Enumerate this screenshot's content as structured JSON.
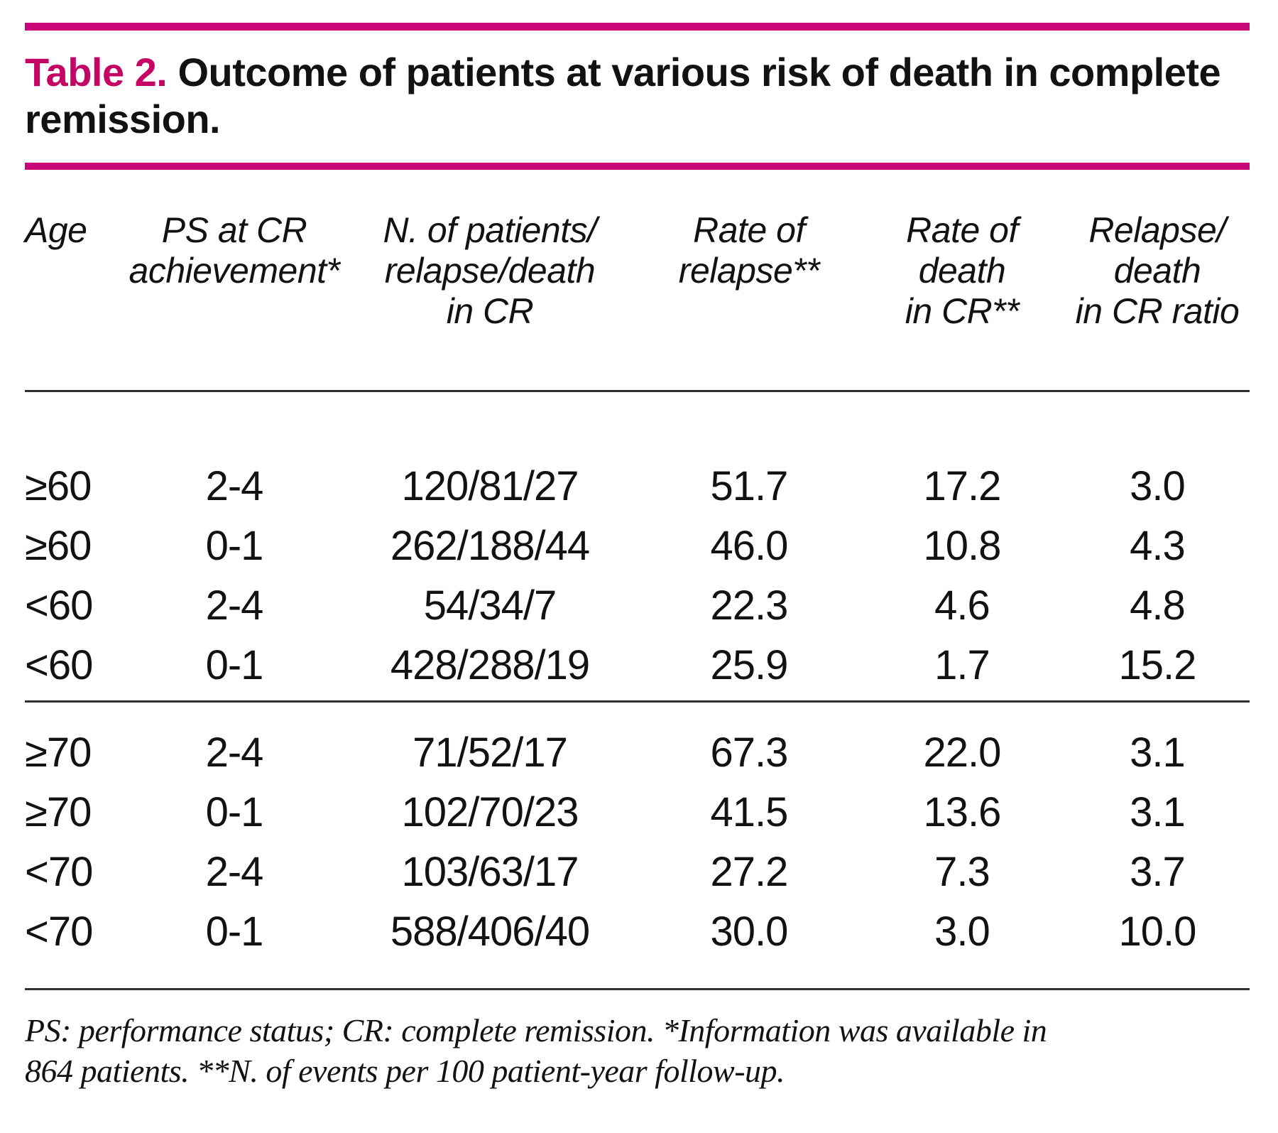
{
  "colors": {
    "accent": "#c90677",
    "label": "#c40566",
    "rule": "#2f2f2f",
    "text": "#121212",
    "background": "#ffffff"
  },
  "title": {
    "label": "Table 2.",
    "line1": "Outcome of patients at various risk of death in complete",
    "line2": "remission."
  },
  "table": {
    "columns": [
      "Age",
      "PS at CR\nachievement*",
      "N. of patients/\nrelapse/death\nin CR",
      "Rate of\nrelapse**",
      "Rate of\ndeath\nin CR**",
      "Relapse/\ndeath\nin CR ratio"
    ],
    "groups": [
      {
        "rows": [
          [
            "≥60",
            "2-4",
            "120/81/27",
            "51.7",
            "17.2",
            "3.0"
          ],
          [
            "≥60",
            "0-1",
            "262/188/44",
            "46.0",
            "10.8",
            "4.3"
          ],
          [
            "<60",
            "2-4",
            "54/34/7",
            "22.3",
            "4.6",
            "4.8"
          ],
          [
            "<60",
            "0-1",
            "428/288/19",
            "25.9",
            "1.7",
            "15.2"
          ]
        ]
      },
      {
        "rows": [
          [
            "≥70",
            "2-4",
            "71/52/17",
            "67.3",
            "22.0",
            "3.1"
          ],
          [
            "≥70",
            "0-1",
            "102/70/23",
            "41.5",
            "13.6",
            "3.1"
          ],
          [
            "<70",
            "2-4",
            "103/63/17",
            "27.2",
            "7.3",
            "3.7"
          ],
          [
            "<70",
            "0-1",
            "588/406/40",
            "30.0",
            "3.0",
            "10.0"
          ]
        ]
      }
    ]
  },
  "footnote": "PS: performance status; CR: complete remission. *Information was available in\n864 patients. **N. of events per 100 patient-year follow-up."
}
